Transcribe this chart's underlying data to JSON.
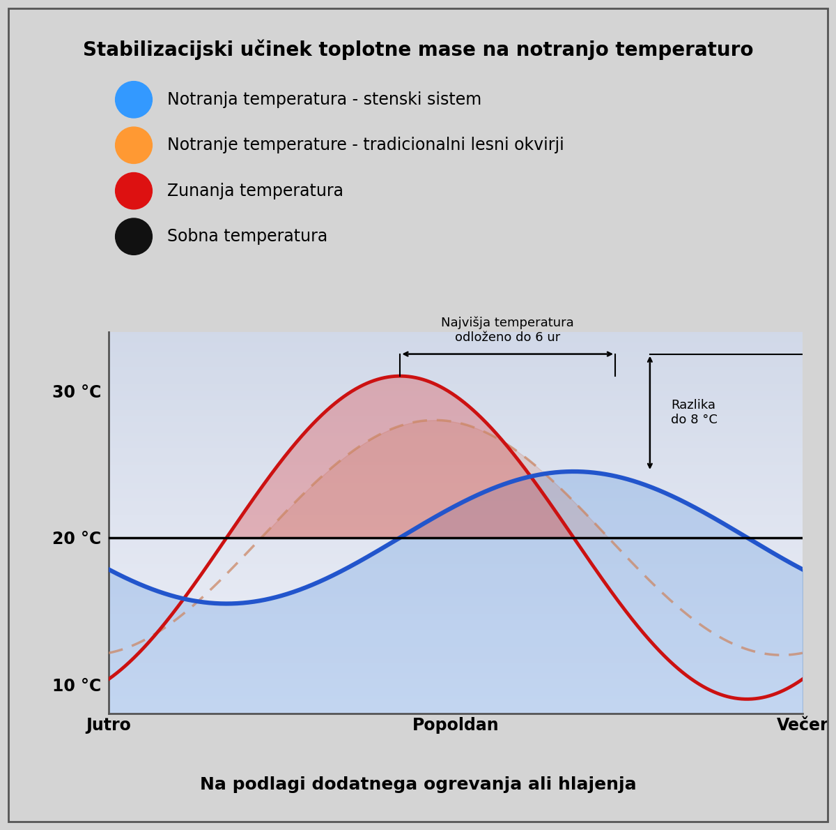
{
  "title": "Stabilizacijski učinek toplotne mase na notranjo temperaturo",
  "xlabel": "Na podlagi dodatnega ogrevanja ali hlajenja",
  "background_color": "#d4d4d4",
  "plot_bg_top": "#c8d0e0",
  "plot_bg_bottom": "#e8eaf0",
  "legend_items": [
    {
      "label": "Notranja temperatura - stenski sistem",
      "color": "#3399ff"
    },
    {
      "label": "Notranje temperature - tradicionalni lesni okvirji",
      "color": "#ff9933"
    },
    {
      "label": "Zunanja temperatura",
      "color": "#dd1111"
    },
    {
      "label": "Sobna temperatura",
      "color": "#111111"
    }
  ],
  "x_ticks": [
    0,
    0.5,
    1.0
  ],
  "x_tick_labels": [
    "Jutro",
    "Popoldan",
    "Večer"
  ],
  "y_ticks": [
    10,
    20,
    30
  ],
  "y_tick_labels": [
    "10 °C",
    "20 °C",
    "30 °C"
  ],
  "annotation_delay_text": "Najvišja temperatura\nodloženo do 6 ur",
  "annotation_diff_text": "Razlika\ndo 8 °C",
  "sobna_temp": 20,
  "title_fontsize": 20,
  "tick_fontsize": 17,
  "legend_fontsize": 17,
  "xlabel_fontsize": 18
}
